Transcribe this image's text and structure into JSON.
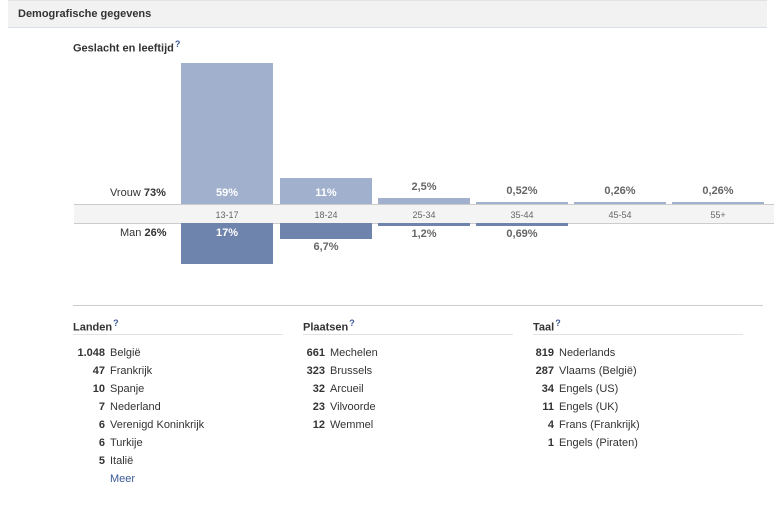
{
  "header": {
    "title": "Demografische gegevens"
  },
  "chart_data": {
    "type": "bar",
    "title": "Geslacht en leeftijd",
    "help_mark": "?",
    "categories": [
      "13-17",
      "18-24",
      "25-34",
      "35-44",
      "45-54",
      "55+"
    ],
    "series": [
      {
        "name": "Vrouw",
        "total_label": "73%",
        "values": [
          59,
          11,
          2.5,
          0.52,
          0.26,
          0.26
        ],
        "labels": [
          "59%",
          "11%",
          "2,5%",
          "0,52%",
          "0,26%",
          "0,26%"
        ]
      },
      {
        "name": "Man",
        "total_label": "26%",
        "values": [
          17,
          6.7,
          1.2,
          0.69,
          0,
          0
        ],
        "labels": [
          "17%",
          "6,7%",
          "1,2%",
          "0,69%",
          "",
          ""
        ]
      }
    ],
    "colors": {
      "Vrouw": "#a1b0cc",
      "Man": "#6f84ad"
    }
  },
  "landen": {
    "title": "Landen",
    "help": "?",
    "items": [
      {
        "count": "1.048",
        "name": "België"
      },
      {
        "count": "47",
        "name": "Frankrijk"
      },
      {
        "count": "10",
        "name": "Spanje"
      },
      {
        "count": "7",
        "name": "Nederland"
      },
      {
        "count": "6",
        "name": "Verenigd Koninkrijk"
      },
      {
        "count": "6",
        "name": "Turkije"
      },
      {
        "count": "5",
        "name": "Italië"
      }
    ],
    "more": "Meer"
  },
  "plaatsen": {
    "title": "Plaatsen",
    "help": "?",
    "items": [
      {
        "count": "661",
        "name": "Mechelen"
      },
      {
        "count": "323",
        "name": "Brussels"
      },
      {
        "count": "32",
        "name": "Arcueil"
      },
      {
        "count": "23",
        "name": "Vilvoorde"
      },
      {
        "count": "12",
        "name": "Wemmel"
      }
    ]
  },
  "taal": {
    "title": "Taal",
    "help": "?",
    "items": [
      {
        "count": "819",
        "name": "Nederlands"
      },
      {
        "count": "287",
        "name": "Vlaams (België)"
      },
      {
        "count": "34",
        "name": "Engels (US)"
      },
      {
        "count": "11",
        "name": "Engels (UK)"
      },
      {
        "count": "4",
        "name": "Frans (Frankrijk)"
      },
      {
        "count": "1",
        "name": "Engels (Piraten)"
      }
    ]
  }
}
